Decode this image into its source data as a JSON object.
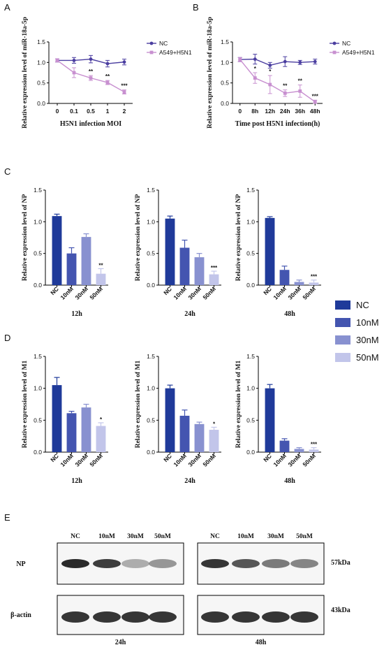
{
  "colors": {
    "nc_line": "#4b3ea0",
    "infected_line": "#c890d0",
    "bar_nc": "#1f3a9a",
    "bar_10": "#4455b0",
    "bar_30": "#8891d0",
    "bar_50": "#c2c5ea"
  },
  "panel_labels": [
    "A",
    "B",
    "C",
    "D",
    "E"
  ],
  "chart_data": [
    {
      "id": "A",
      "type": "line",
      "ylabel": "Relative expression level of miR-18a-5p",
      "xlabel": "H5N1 infection MOI",
      "categories": [
        "0",
        "0.1",
        "0.5",
        "1",
        "2"
      ],
      "ylim": [
        0,
        1.5
      ],
      "yticks": [
        "0.0",
        "0.5",
        "1.0",
        "1.5"
      ],
      "legend": [
        "NC",
        "A549+H5N1"
      ],
      "series": [
        {
          "name": "NC",
          "values": [
            1.05,
            1.05,
            1.08,
            0.97,
            1.01
          ],
          "errors": [
            0.04,
            0.07,
            0.09,
            0.08,
            0.07
          ]
        },
        {
          "name": "A549+H5N1",
          "values": [
            1.05,
            0.75,
            0.62,
            0.51,
            0.28
          ],
          "errors": [
            0.04,
            0.12,
            0.06,
            0.05,
            0.05
          ]
        }
      ],
      "sig": [
        "",
        "",
        "**",
        "**",
        "***"
      ]
    },
    {
      "id": "B",
      "type": "line",
      "ylabel": "Relative expression level of miR-18a-5p",
      "xlabel": "Time post H5N1 infection(h)",
      "categories": [
        "0",
        "8h",
        "12h",
        "24h",
        "36h",
        "48h"
      ],
      "ylim": [
        0,
        1.5
      ],
      "yticks": [
        "0.0",
        "0.5",
        "1.0",
        "1.5"
      ],
      "legend": [
        "NC",
        "A549+H5N1"
      ],
      "series": [
        {
          "name": "NC",
          "values": [
            1.07,
            1.08,
            0.93,
            1.02,
            1.0,
            1.02
          ],
          "errors": [
            0.05,
            0.12,
            0.07,
            0.12,
            0.05,
            0.06
          ]
        },
        {
          "name": "A549+H5N1",
          "values": [
            1.07,
            0.62,
            0.46,
            0.25,
            0.3,
            0.04
          ],
          "errors": [
            0.05,
            0.13,
            0.22,
            0.08,
            0.15,
            0.04
          ]
        }
      ],
      "sig": [
        "",
        "*",
        "*",
        "**",
        "**",
        "***"
      ]
    },
    {
      "id": "C-12h",
      "type": "bar",
      "ylabel": "Relative expression level of NP",
      "xlabel": "12h",
      "categories": [
        "NC",
        "10nM",
        "30nM",
        "50nM"
      ],
      "values": [
        1.09,
        0.5,
        0.76,
        0.18
      ],
      "errors": [
        0.03,
        0.09,
        0.05,
        0.08
      ],
      "ylim": [
        0,
        1.5
      ],
      "yticks": [
        "0.0",
        "0.5",
        "1.0",
        "1.5"
      ],
      "sig": [
        "",
        "",
        "",
        "**"
      ]
    },
    {
      "id": "C-24h",
      "type": "bar",
      "ylabel": "Relative expression level of NP",
      "xlabel": "24h",
      "categories": [
        "NC",
        "10nM",
        "30nM",
        "50nM"
      ],
      "values": [
        1.05,
        0.59,
        0.44,
        0.17
      ],
      "errors": [
        0.04,
        0.12,
        0.06,
        0.05
      ],
      "ylim": [
        0,
        1.5
      ],
      "yticks": [
        "0.0",
        "0.5",
        "1.0",
        "1.5"
      ],
      "sig": [
        "",
        "",
        "",
        "***"
      ]
    },
    {
      "id": "C-48h",
      "type": "bar",
      "ylabel": "Relative expression level of NP",
      "xlabel": "48h",
      "categories": [
        "NC",
        "10nM",
        "30nM",
        "50nM"
      ],
      "values": [
        1.06,
        0.24,
        0.05,
        0.04
      ],
      "errors": [
        0.02,
        0.06,
        0.03,
        0.04
      ],
      "ylim": [
        0,
        1.5
      ],
      "yticks": [
        "0.0",
        "0.5",
        "1.0",
        "1.5"
      ],
      "sig": [
        "",
        "",
        "",
        "***"
      ]
    },
    {
      "id": "D-12h",
      "type": "bar",
      "ylabel": "Relative expression level of M1",
      "xlabel": "12h",
      "categories": [
        "NC",
        "10nM",
        "30nM",
        "50nM"
      ],
      "values": [
        1.05,
        0.61,
        0.7,
        0.41
      ],
      "errors": [
        0.12,
        0.03,
        0.05,
        0.05
      ],
      "ylim": [
        0,
        1.5
      ],
      "yticks": [
        "0.0",
        "0.5",
        "1.0",
        "1.5"
      ],
      "sig": [
        "",
        "",
        "",
        "*"
      ]
    },
    {
      "id": "D-24h",
      "type": "bar",
      "ylabel": "Relative expression level of M1",
      "xlabel": "24h",
      "categories": [
        "NC",
        "10nM",
        "30nM",
        "50nM"
      ],
      "values": [
        1.0,
        0.57,
        0.44,
        0.35
      ],
      "errors": [
        0.05,
        0.09,
        0.03,
        0.04
      ],
      "ylim": [
        0,
        1.5
      ],
      "yticks": [
        "0.0",
        "0.5",
        "1.0",
        "1.5"
      ],
      "sig": [
        "",
        "",
        "",
        "*"
      ]
    },
    {
      "id": "D-48h",
      "type": "bar",
      "ylabel": "Relative expression level of M1",
      "xlabel": "48h",
      "categories": [
        "NC",
        "10nM",
        "30nM",
        "50nM"
      ],
      "values": [
        1.0,
        0.18,
        0.05,
        0.04
      ],
      "errors": [
        0.06,
        0.03,
        0.02,
        0.03
      ],
      "ylim": [
        0,
        1.5
      ],
      "yticks": [
        "0.0",
        "0.5",
        "1.0",
        "1.5"
      ],
      "sig": [
        "",
        "",
        "",
        "***"
      ]
    }
  ],
  "bar_legend": [
    "NC",
    "10nM",
    "30nM",
    "50nM"
  ],
  "western_blot": {
    "lanes": [
      "NC",
      "10nM",
      "30nM",
      "50nM"
    ],
    "rows": [
      "NP",
      "β-actin"
    ],
    "sizes": [
      "57kDa",
      "43kDa"
    ],
    "times": [
      "24h",
      "48h"
    ]
  }
}
